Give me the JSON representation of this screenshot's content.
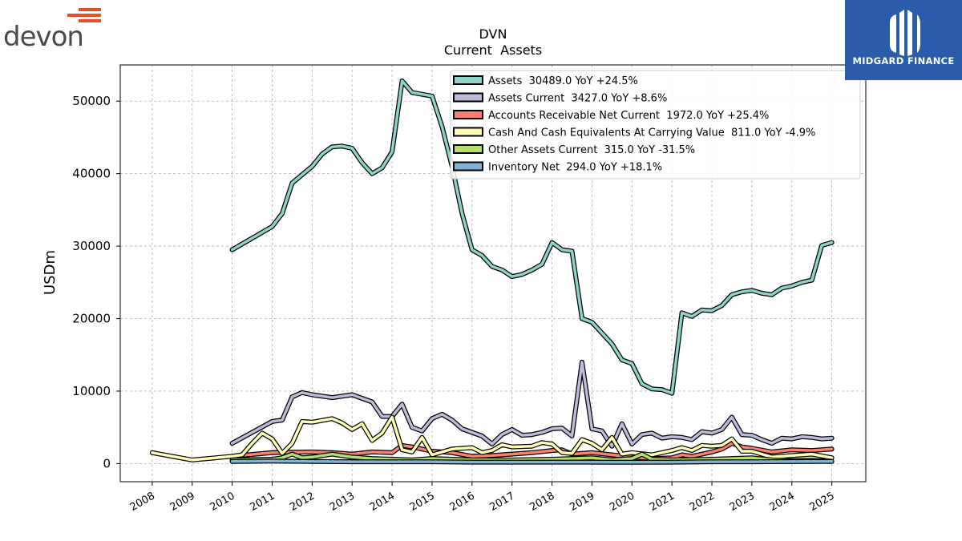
{
  "branding": {
    "left_logo": "devon",
    "left_logo_color": "#e8502a",
    "right_logo": "MIDGARD FINANCE",
    "right_logo_bg": "#2a5caa"
  },
  "chart_data": {
    "type": "line",
    "title": "DVN",
    "subtitle": "Current  Assets",
    "ylabel": "USDm",
    "xlabel": "",
    "ylim": [
      -2500,
      55000
    ],
    "xlim": [
      2007.2,
      2025.85
    ],
    "yticks": [
      0,
      10000,
      20000,
      30000,
      40000,
      50000
    ],
    "xticks": [
      "2008",
      "2009",
      "2010",
      "2011",
      "2012",
      "2013",
      "2014",
      "2015",
      "2016",
      "2017",
      "2018",
      "2019",
      "2020",
      "2021",
      "2022",
      "2023",
      "2024",
      "2025"
    ],
    "grid": true,
    "legend_position": "top-right",
    "series": [
      {
        "name": "Assets",
        "legend": "Assets  30489.0 YoY +24.5%",
        "color": "#8dd3c7",
        "points": [
          [
            2010,
            29500
          ],
          [
            2011,
            32700
          ],
          [
            2011.25,
            34500
          ],
          [
            2011.5,
            38700
          ],
          [
            2012,
            41000
          ],
          [
            2012.25,
            42700
          ],
          [
            2012.5,
            43700
          ],
          [
            2012.75,
            43800
          ],
          [
            2013,
            43500
          ],
          [
            2013.25,
            41500
          ],
          [
            2013.5,
            40000
          ],
          [
            2013.75,
            40800
          ],
          [
            2014,
            43000
          ],
          [
            2014.25,
            52800
          ],
          [
            2014.5,
            51200
          ],
          [
            2015,
            50700
          ],
          [
            2015.25,
            46500
          ],
          [
            2015.5,
            41000
          ],
          [
            2015.75,
            34500
          ],
          [
            2016,
            29500
          ],
          [
            2016.25,
            28700
          ],
          [
            2016.5,
            27200
          ],
          [
            2016.75,
            26700
          ],
          [
            2017,
            25800
          ],
          [
            2017.25,
            26100
          ],
          [
            2017.5,
            26700
          ],
          [
            2017.75,
            27500
          ],
          [
            2018,
            30500
          ],
          [
            2018.25,
            29500
          ],
          [
            2018.5,
            29300
          ],
          [
            2018.75,
            20000
          ],
          [
            2019,
            19500
          ],
          [
            2019.25,
            18000
          ],
          [
            2019.5,
            16500
          ],
          [
            2019.75,
            14300
          ],
          [
            2020,
            13800
          ],
          [
            2020.25,
            11000
          ],
          [
            2020.5,
            10300
          ],
          [
            2020.75,
            10200
          ],
          [
            2021,
            9700
          ],
          [
            2021.25,
            20800
          ],
          [
            2021.5,
            20300
          ],
          [
            2021.75,
            21200
          ],
          [
            2022,
            21100
          ],
          [
            2022.25,
            21800
          ],
          [
            2022.5,
            23300
          ],
          [
            2022.75,
            23700
          ],
          [
            2023,
            23900
          ],
          [
            2023.25,
            23500
          ],
          [
            2023.5,
            23300
          ],
          [
            2023.75,
            24200
          ],
          [
            2024,
            24500
          ],
          [
            2024.25,
            25000
          ],
          [
            2024.5,
            25300
          ],
          [
            2024.75,
            30100
          ],
          [
            2025,
            30500
          ]
        ]
      },
      {
        "name": "Assets Current",
        "legend": "Assets Current  3427.0 YoY +8.6%",
        "color": "#bebada",
        "points": [
          [
            2010,
            2800
          ],
          [
            2011,
            5800
          ],
          [
            2011.25,
            6000
          ],
          [
            2011.5,
            9200
          ],
          [
            2011.75,
            9800
          ],
          [
            2012,
            9500
          ],
          [
            2012.5,
            9100
          ],
          [
            2013,
            9500
          ],
          [
            2013.25,
            9000
          ],
          [
            2013.5,
            8500
          ],
          [
            2013.75,
            6500
          ],
          [
            2014,
            6500
          ],
          [
            2014.25,
            8200
          ],
          [
            2014.5,
            5000
          ],
          [
            2014.75,
            4500
          ],
          [
            2015,
            6200
          ],
          [
            2015.25,
            6800
          ],
          [
            2015.5,
            6000
          ],
          [
            2015.75,
            4800
          ],
          [
            2016,
            4300
          ],
          [
            2016.25,
            3800
          ],
          [
            2016.5,
            2700
          ],
          [
            2016.75,
            4000
          ],
          [
            2017,
            4700
          ],
          [
            2017.25,
            3900
          ],
          [
            2017.5,
            4000
          ],
          [
            2017.75,
            4300
          ],
          [
            2018,
            4800
          ],
          [
            2018.25,
            4900
          ],
          [
            2018.5,
            3800
          ],
          [
            2018.75,
            14000
          ],
          [
            2019,
            4800
          ],
          [
            2019.25,
            4500
          ],
          [
            2019.5,
            2400
          ],
          [
            2019.75,
            5500
          ],
          [
            2020,
            2700
          ],
          [
            2020.25,
            4000
          ],
          [
            2020.5,
            4200
          ],
          [
            2020.75,
            3500
          ],
          [
            2021,
            3700
          ],
          [
            2021.25,
            3600
          ],
          [
            2021.5,
            3300
          ],
          [
            2021.75,
            4400
          ],
          [
            2022,
            4200
          ],
          [
            2022.25,
            4700
          ],
          [
            2022.5,
            6400
          ],
          [
            2022.75,
            4000
          ],
          [
            2023,
            3900
          ],
          [
            2023.25,
            3300
          ],
          [
            2023.5,
            2800
          ],
          [
            2023.75,
            3500
          ],
          [
            2024,
            3400
          ],
          [
            2024.25,
            3700
          ],
          [
            2024.5,
            3600
          ],
          [
            2024.75,
            3400
          ],
          [
            2025,
            3500
          ]
        ]
      },
      {
        "name": "Accounts Receivable Net Current",
        "legend": "Accounts Receivable Net Current  1972.0 YoY +25.4%",
        "color": "#fb8072",
        "points": [
          [
            2010,
            1000
          ],
          [
            2011,
            1500
          ],
          [
            2012,
            1600
          ],
          [
            2012.5,
            1500
          ],
          [
            2013,
            1300
          ],
          [
            2013.5,
            1600
          ],
          [
            2014,
            1500
          ],
          [
            2014.25,
            2500
          ],
          [
            2014.5,
            2300
          ],
          [
            2015,
            1700
          ],
          [
            2015.5,
            1500
          ],
          [
            2016,
            1000
          ],
          [
            2016.5,
            1100
          ],
          [
            2017,
            1300
          ],
          [
            2017.5,
            1500
          ],
          [
            2018,
            1800
          ],
          [
            2018.25,
            1900
          ],
          [
            2018.5,
            1300
          ],
          [
            2019,
            1500
          ],
          [
            2019.5,
            1200
          ],
          [
            2020,
            900
          ],
          [
            2020.5,
            700
          ],
          [
            2021,
            800
          ],
          [
            2021.25,
            1200
          ],
          [
            2021.5,
            1000
          ],
          [
            2022,
            1600
          ],
          [
            2022.25,
            2000
          ],
          [
            2022.5,
            2800
          ],
          [
            2022.75,
            2300
          ],
          [
            2023,
            2100
          ],
          [
            2023.5,
            1600
          ],
          [
            2024,
            1900
          ],
          [
            2024.5,
            1800
          ],
          [
            2025,
            2000
          ]
        ]
      },
      {
        "name": "Cash And Cash Equivalents At Carrying Value",
        "legend": "Cash And Cash Equivalents At Carrying Value  811.0 YoY -4.9%",
        "color": "#ffffb3",
        "points": [
          [
            2008,
            1500
          ],
          [
            2009,
            500
          ],
          [
            2010,
            1000
          ],
          [
            2010.25,
            1200
          ],
          [
            2010.5,
            2800
          ],
          [
            2010.75,
            4200
          ],
          [
            2011,
            3400
          ],
          [
            2011.25,
            1400
          ],
          [
            2011.5,
            2800
          ],
          [
            2011.75,
            5800
          ],
          [
            2012,
            5700
          ],
          [
            2012.5,
            6200
          ],
          [
            2012.75,
            5600
          ],
          [
            2013,
            4700
          ],
          [
            2013.25,
            5500
          ],
          [
            2013.5,
            3200
          ],
          [
            2013.75,
            4200
          ],
          [
            2014,
            6400
          ],
          [
            2014.25,
            1900
          ],
          [
            2014.5,
            1600
          ],
          [
            2014.75,
            3600
          ],
          [
            2015,
            1200
          ],
          [
            2015.5,
            2000
          ],
          [
            2016,
            2200
          ],
          [
            2016.25,
            1500
          ],
          [
            2016.5,
            1800
          ],
          [
            2016.75,
            2600
          ],
          [
            2017,
            2300
          ],
          [
            2017.5,
            2400
          ],
          [
            2017.75,
            2900
          ],
          [
            2018,
            2700
          ],
          [
            2018.25,
            1500
          ],
          [
            2018.5,
            1400
          ],
          [
            2018.75,
            3300
          ],
          [
            2019,
            2800
          ],
          [
            2019.25,
            1900
          ],
          [
            2019.5,
            3600
          ],
          [
            2019.75,
            1300
          ],
          [
            2020,
            1500
          ],
          [
            2020.5,
            1200
          ],
          [
            2021,
            1800
          ],
          [
            2021.25,
            2200
          ],
          [
            2021.5,
            1800
          ],
          [
            2021.75,
            2500
          ],
          [
            2022,
            2400
          ],
          [
            2022.25,
            2500
          ],
          [
            2022.5,
            3400
          ],
          [
            2022.75,
            1700
          ],
          [
            2023,
            1700
          ],
          [
            2023.5,
            900
          ],
          [
            2024,
            1100
          ],
          [
            2024.5,
            1300
          ],
          [
            2025,
            800
          ]
        ]
      },
      {
        "name": "Other Assets Current",
        "legend": "Other Assets Current  315.0 YoY -31.5%",
        "color": "#b3de69",
        "points": [
          [
            2010,
            500
          ],
          [
            2011,
            600
          ],
          [
            2011.25,
            800
          ],
          [
            2011.5,
            1300
          ],
          [
            2011.75,
            800
          ],
          [
            2012,
            900
          ],
          [
            2012.5,
            1300
          ],
          [
            2013,
            900
          ],
          [
            2013.5,
            700
          ],
          [
            2014,
            600
          ],
          [
            2014.5,
            500
          ],
          [
            2015,
            700
          ],
          [
            2015.5,
            600
          ],
          [
            2016,
            500
          ],
          [
            2017,
            500
          ],
          [
            2018,
            600
          ],
          [
            2018.5,
            700
          ],
          [
            2019,
            800
          ],
          [
            2019.5,
            500
          ],
          [
            2020,
            700
          ],
          [
            2020.25,
            1300
          ],
          [
            2020.5,
            600
          ],
          [
            2021,
            500
          ],
          [
            2022,
            600
          ],
          [
            2022.5,
            700
          ],
          [
            2023,
            800
          ],
          [
            2023.5,
            500
          ],
          [
            2024,
            400
          ],
          [
            2024.5,
            450
          ],
          [
            2025,
            315
          ]
        ]
      },
      {
        "name": "Inventory Net",
        "legend": "Inventory Net  294.0 YoY +18.1%",
        "color": "#80b1d3",
        "points": [
          [
            2010,
            300
          ],
          [
            2011,
            350
          ],
          [
            2012,
            300
          ],
          [
            2013,
            250
          ],
          [
            2014,
            250
          ],
          [
            2015,
            250
          ],
          [
            2016,
            200
          ],
          [
            2017,
            200
          ],
          [
            2018,
            200
          ],
          [
            2019,
            200
          ],
          [
            2020,
            180
          ],
          [
            2021,
            200
          ],
          [
            2022,
            250
          ],
          [
            2023,
            250
          ],
          [
            2024,
            280
          ],
          [
            2025,
            294
          ]
        ]
      }
    ]
  }
}
